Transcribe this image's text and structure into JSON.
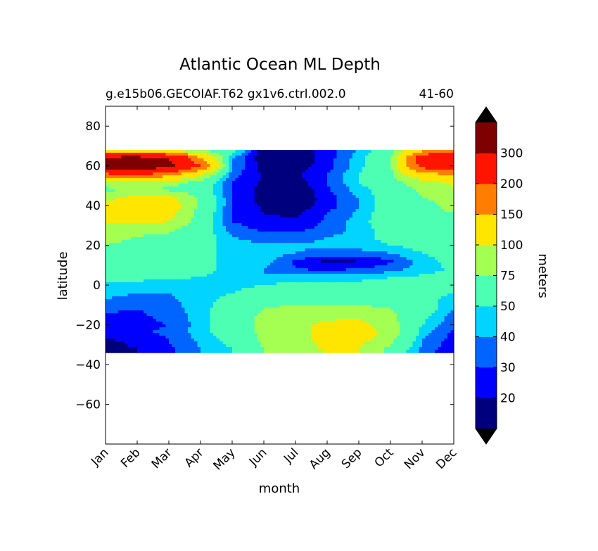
{
  "chart_data": {
    "type": "heatmap",
    "subtype": "filled-contour",
    "title": "Atlantic Ocean ML Depth",
    "subtitle_left": "g.e15b06.GECOIAF.T62 gx1v6.ctrl.002.0",
    "subtitle_right": "41-60",
    "xlabel": "month",
    "ylabel": "latitude",
    "x_tick_labels": [
      "Jan",
      "Feb",
      "Mar",
      "Apr",
      "May",
      "Jun",
      "Jul",
      "Aug",
      "Sep",
      "Oct",
      "Nov",
      "Dec"
    ],
    "y_ticks": [
      80,
      60,
      40,
      20,
      0,
      -20,
      -40,
      -60
    ],
    "y_tick_labels": [
      "80",
      "60",
      "40",
      "20",
      "0",
      "−20",
      "−40",
      "−60"
    ],
    "ylim": [
      -80,
      90
    ],
    "data_lat_range": [
      -34,
      68
    ],
    "colorbar": {
      "label": "meters",
      "levels": [
        10,
        20,
        30,
        40,
        50,
        75,
        100,
        150,
        200,
        300,
        400
      ],
      "tick_values": [
        20,
        30,
        40,
        50,
        75,
        100,
        150,
        200,
        300
      ],
      "tick_labels": [
        "20",
        "30",
        "40",
        "50",
        "75",
        "100",
        "150",
        "200",
        "300"
      ],
      "colors": [
        "#00007f",
        "#0000ff",
        "#0064ff",
        "#00d4ff",
        "#4dffb2",
        "#a4ff53",
        "#ffe600",
        "#ff7d00",
        "#ff1400",
        "#7f0000"
      ],
      "under_color": "#000000",
      "over_color": "#000000",
      "extend": "both"
    },
    "grid": false,
    "lat": [
      68,
      64,
      60,
      56,
      52,
      48,
      44,
      40,
      36,
      32,
      28,
      24,
      20,
      16,
      12,
      8,
      4,
      0,
      -4,
      -8,
      -12,
      -16,
      -20,
      -24,
      -28,
      -32,
      -34
    ],
    "z": [
      [
        110,
        100,
        80,
        70,
        60,
        12,
        12,
        25,
        40,
        60,
        130,
        140
      ],
      [
        320,
        330,
        300,
        150,
        40,
        12,
        12,
        25,
        45,
        70,
        250,
        300
      ],
      [
        350,
        380,
        320,
        200,
        40,
        15,
        15,
        25,
        45,
        70,
        220,
        260
      ],
      [
        200,
        220,
        180,
        110,
        35,
        18,
        18,
        30,
        50,
        70,
        140,
        160
      ],
      [
        90,
        100,
        85,
        70,
        30,
        18,
        15,
        30,
        50,
        65,
        90,
        110
      ],
      [
        70,
        75,
        70,
        60,
        30,
        15,
        10,
        28,
        45,
        60,
        80,
        90
      ],
      [
        90,
        110,
        110,
        70,
        30,
        15,
        10,
        25,
        40,
        60,
        75,
        80
      ],
      [
        110,
        120,
        120,
        70,
        30,
        18,
        12,
        25,
        40,
        60,
        70,
        80
      ],
      [
        110,
        120,
        110,
        65,
        30,
        20,
        18,
        30,
        42,
        60,
        70,
        75
      ],
      [
        100,
        110,
        100,
        65,
        30,
        22,
        22,
        32,
        45,
        60,
        65,
        70
      ],
      [
        90,
        80,
        80,
        60,
        35,
        28,
        28,
        32,
        45,
        55,
        60,
        65
      ],
      [
        80,
        75,
        70,
        60,
        40,
        35,
        35,
        40,
        45,
        55,
        55,
        60
      ],
      [
        75,
        70,
        65,
        55,
        45,
        42,
        42,
        42,
        45,
        50,
        55,
        55
      ],
      [
        70,
        70,
        65,
        55,
        45,
        45,
        40,
        35,
        35,
        40,
        50,
        55
      ],
      [
        65,
        65,
        60,
        55,
        45,
        45,
        28,
        18,
        20,
        28,
        45,
        55
      ],
      [
        60,
        60,
        55,
        55,
        45,
        40,
        30,
        28,
        30,
        35,
        45,
        52
      ],
      [
        55,
        55,
        52,
        50,
        45,
        40,
        45,
        45,
        45,
        50,
        52,
        55
      ],
      [
        48,
        45,
        45,
        45,
        45,
        50,
        55,
        55,
        55,
        55,
        55,
        50
      ],
      [
        45,
        40,
        40,
        45,
        50,
        60,
        60,
        60,
        60,
        60,
        55,
        50
      ],
      [
        38,
        35,
        38,
        45,
        55,
        65,
        65,
        65,
        65,
        60,
        55,
        45
      ],
      [
        32,
        30,
        35,
        45,
        60,
        75,
        85,
        85,
        85,
        75,
        60,
        40
      ],
      [
        28,
        28,
        32,
        45,
        60,
        80,
        90,
        95,
        95,
        80,
        55,
        35
      ],
      [
        28,
        28,
        30,
        45,
        60,
        80,
        95,
        105,
        110,
        85,
        50,
        32
      ],
      [
        25,
        28,
        32,
        45,
        60,
        80,
        90,
        110,
        120,
        90,
        45,
        28
      ],
      [
        18,
        22,
        30,
        42,
        55,
        80,
        90,
        110,
        110,
        80,
        40,
        25
      ],
      [
        18,
        20,
        28,
        40,
        50,
        75,
        85,
        105,
        100,
        70,
        38,
        22
      ],
      [
        18,
        20,
        28,
        40,
        50,
        75,
        85,
        100,
        100,
        65,
        35,
        22
      ]
    ]
  }
}
